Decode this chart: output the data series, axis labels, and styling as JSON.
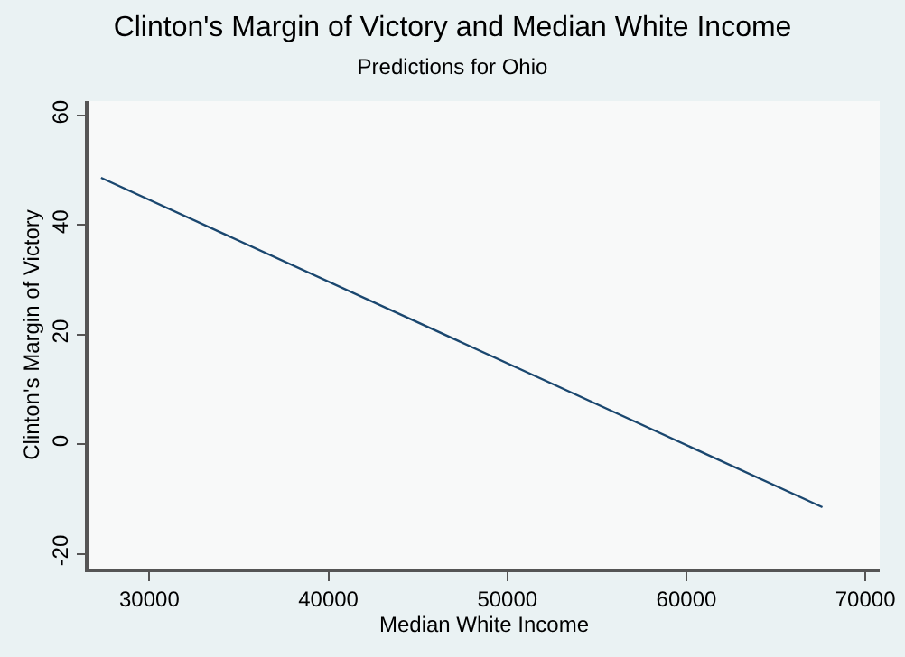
{
  "chart_data": {
    "type": "line",
    "title": "Clinton's Margin of Victory and Median White Income",
    "subtitle": "Predictions for Ohio",
    "xlabel": "Median White Income",
    "ylabel": "Clinton's Margin of Victory",
    "x": [
      27300,
      67600
    ],
    "series": [
      {
        "color": "#1a476f",
        "values": [
          48.6,
          -11.5
        ]
      }
    ],
    "xlim": [
      26600,
      70800
    ],
    "xticks": [
      30000,
      40000,
      50000,
      60000,
      70000
    ],
    "ylim": [
      -22.7,
      62.6
    ],
    "yticks": [
      -20,
      0,
      20,
      40,
      60
    ],
    "marker": "none",
    "line_style": "solid"
  }
}
